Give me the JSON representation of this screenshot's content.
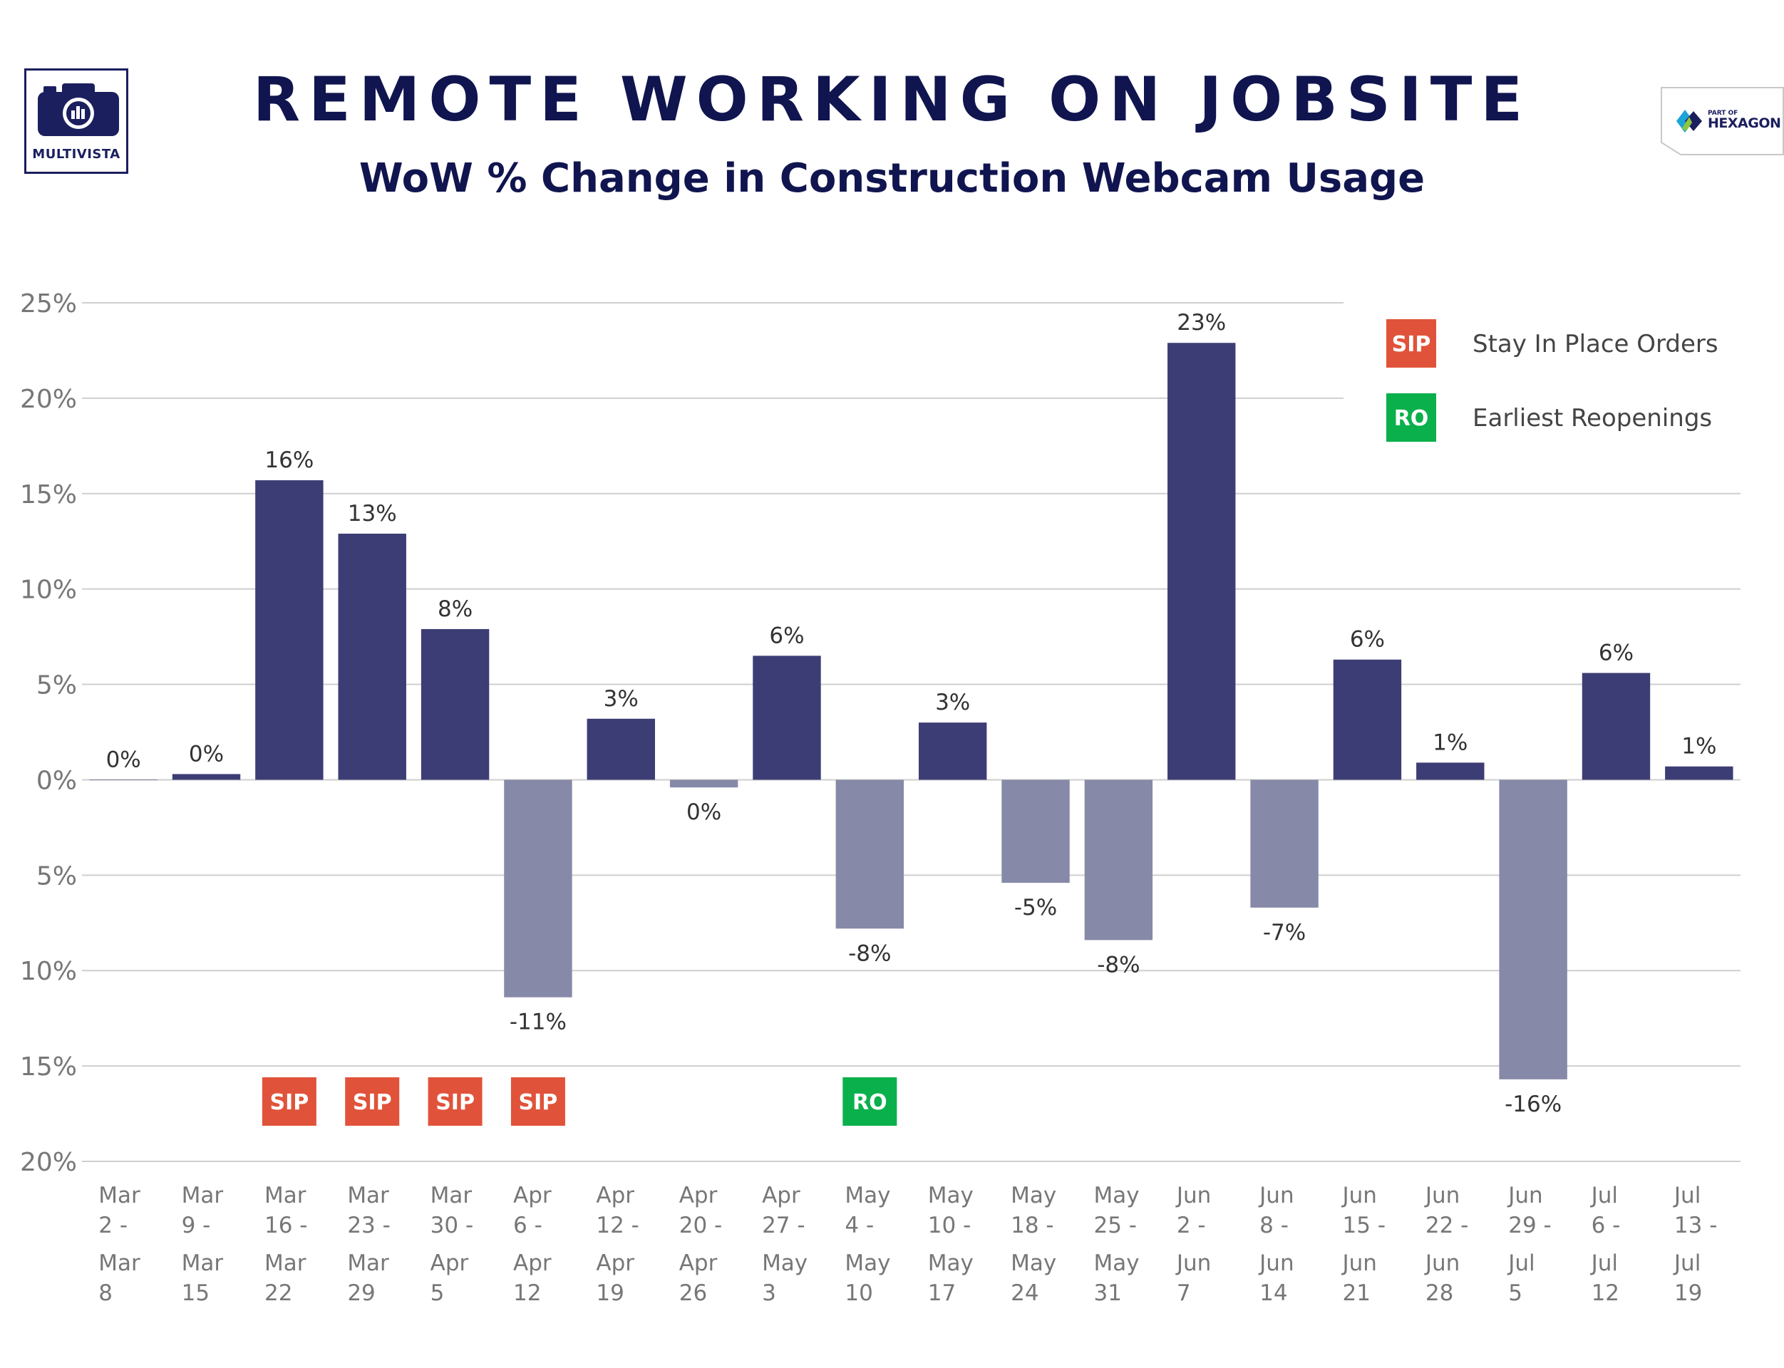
{
  "header": {
    "title": "REMOTE WORKING ON JOBSITE",
    "subtitle": "WoW % Change in Construction Webcam Usage",
    "logo_left": "MULTIVISTA",
    "logo_right_small": "PART OF",
    "logo_right": "HEXAGON"
  },
  "colors": {
    "positive_bar": "#3d3d75",
    "negative_bar": "#8789a8",
    "sip_badge": "#e0533a",
    "ro_badge": "#0ab04b",
    "title": "#10154f"
  },
  "legend": [
    {
      "badge": "SIP",
      "label": "Stay In Place Orders",
      "color": "#e0533a"
    },
    {
      "badge": "RO",
      "label": "Earliest Reopenings",
      "color": "#0ab04b"
    }
  ],
  "chart_data": {
    "type": "bar",
    "ylim": [
      -20,
      25
    ],
    "yticks": [
      25,
      20,
      15,
      10,
      5,
      0,
      -5,
      -10,
      -15,
      -20
    ],
    "ytick_labels": [
      "25%",
      "20%",
      "15%",
      "10%",
      "5%",
      "0%",
      "5%",
      "10%",
      "15%",
      "20%"
    ],
    "grid": true,
    "legend_position": "top-right",
    "categories": [
      [
        "Mar",
        "2 -",
        "Mar",
        "8"
      ],
      [
        "Mar",
        "9 -",
        "Mar",
        "15"
      ],
      [
        "Mar",
        "16 -",
        "Mar",
        "22"
      ],
      [
        "Mar",
        "23 -",
        "Mar",
        "29"
      ],
      [
        "Mar",
        "30 -",
        "Apr",
        "5"
      ],
      [
        "Apr",
        "6 -",
        "Apr",
        "12"
      ],
      [
        "Apr",
        "12 -",
        "Apr",
        "19"
      ],
      [
        "Apr",
        "20 -",
        "Apr",
        "26"
      ],
      [
        "Apr",
        "27 -",
        "May",
        "3"
      ],
      [
        "May",
        "4 -",
        "May",
        "10"
      ],
      [
        "May",
        "10 -",
        "May",
        "17"
      ],
      [
        "May",
        "18 -",
        "May",
        "24"
      ],
      [
        "May",
        "25 -",
        "May",
        "31"
      ],
      [
        "Jun",
        "2 -",
        "Jun",
        "7"
      ],
      [
        "Jun",
        "8 -",
        "Jun",
        "14"
      ],
      [
        "Jun",
        "15 -",
        "Jun",
        "21"
      ],
      [
        "Jun",
        "22 -",
        "Jun",
        "28"
      ],
      [
        "Jun",
        "29 -",
        "Jul",
        "5"
      ],
      [
        "Jul",
        "6 -",
        "Jul",
        "12"
      ],
      [
        "Jul",
        "13 -",
        "Jul",
        "19"
      ]
    ],
    "values": [
      0,
      0.3,
      15.7,
      12.9,
      7.9,
      -11.4,
      3.2,
      -0.4,
      6.5,
      -7.8,
      3.0,
      -5.4,
      -8.4,
      22.9,
      -6.7,
      6.3,
      0.9,
      -15.7,
      5.6,
      0.7
    ],
    "data_labels": [
      "0%",
      "0%",
      "16%",
      "13%",
      "8%",
      "-11%",
      "3%",
      "0%",
      "6%",
      "-8%",
      "3%",
      "-5%",
      "-8%",
      "23%",
      "-7%",
      "6%",
      "1%",
      "-16%",
      "6%",
      "1%"
    ],
    "badges": [
      {
        "index": 2,
        "text": "SIP",
        "type": "sip"
      },
      {
        "index": 3,
        "text": "SIP",
        "type": "sip"
      },
      {
        "index": 4,
        "text": "SIP",
        "type": "sip"
      },
      {
        "index": 5,
        "text": "SIP",
        "type": "sip"
      },
      {
        "index": 9,
        "text": "RO",
        "type": "ro"
      }
    ]
  }
}
